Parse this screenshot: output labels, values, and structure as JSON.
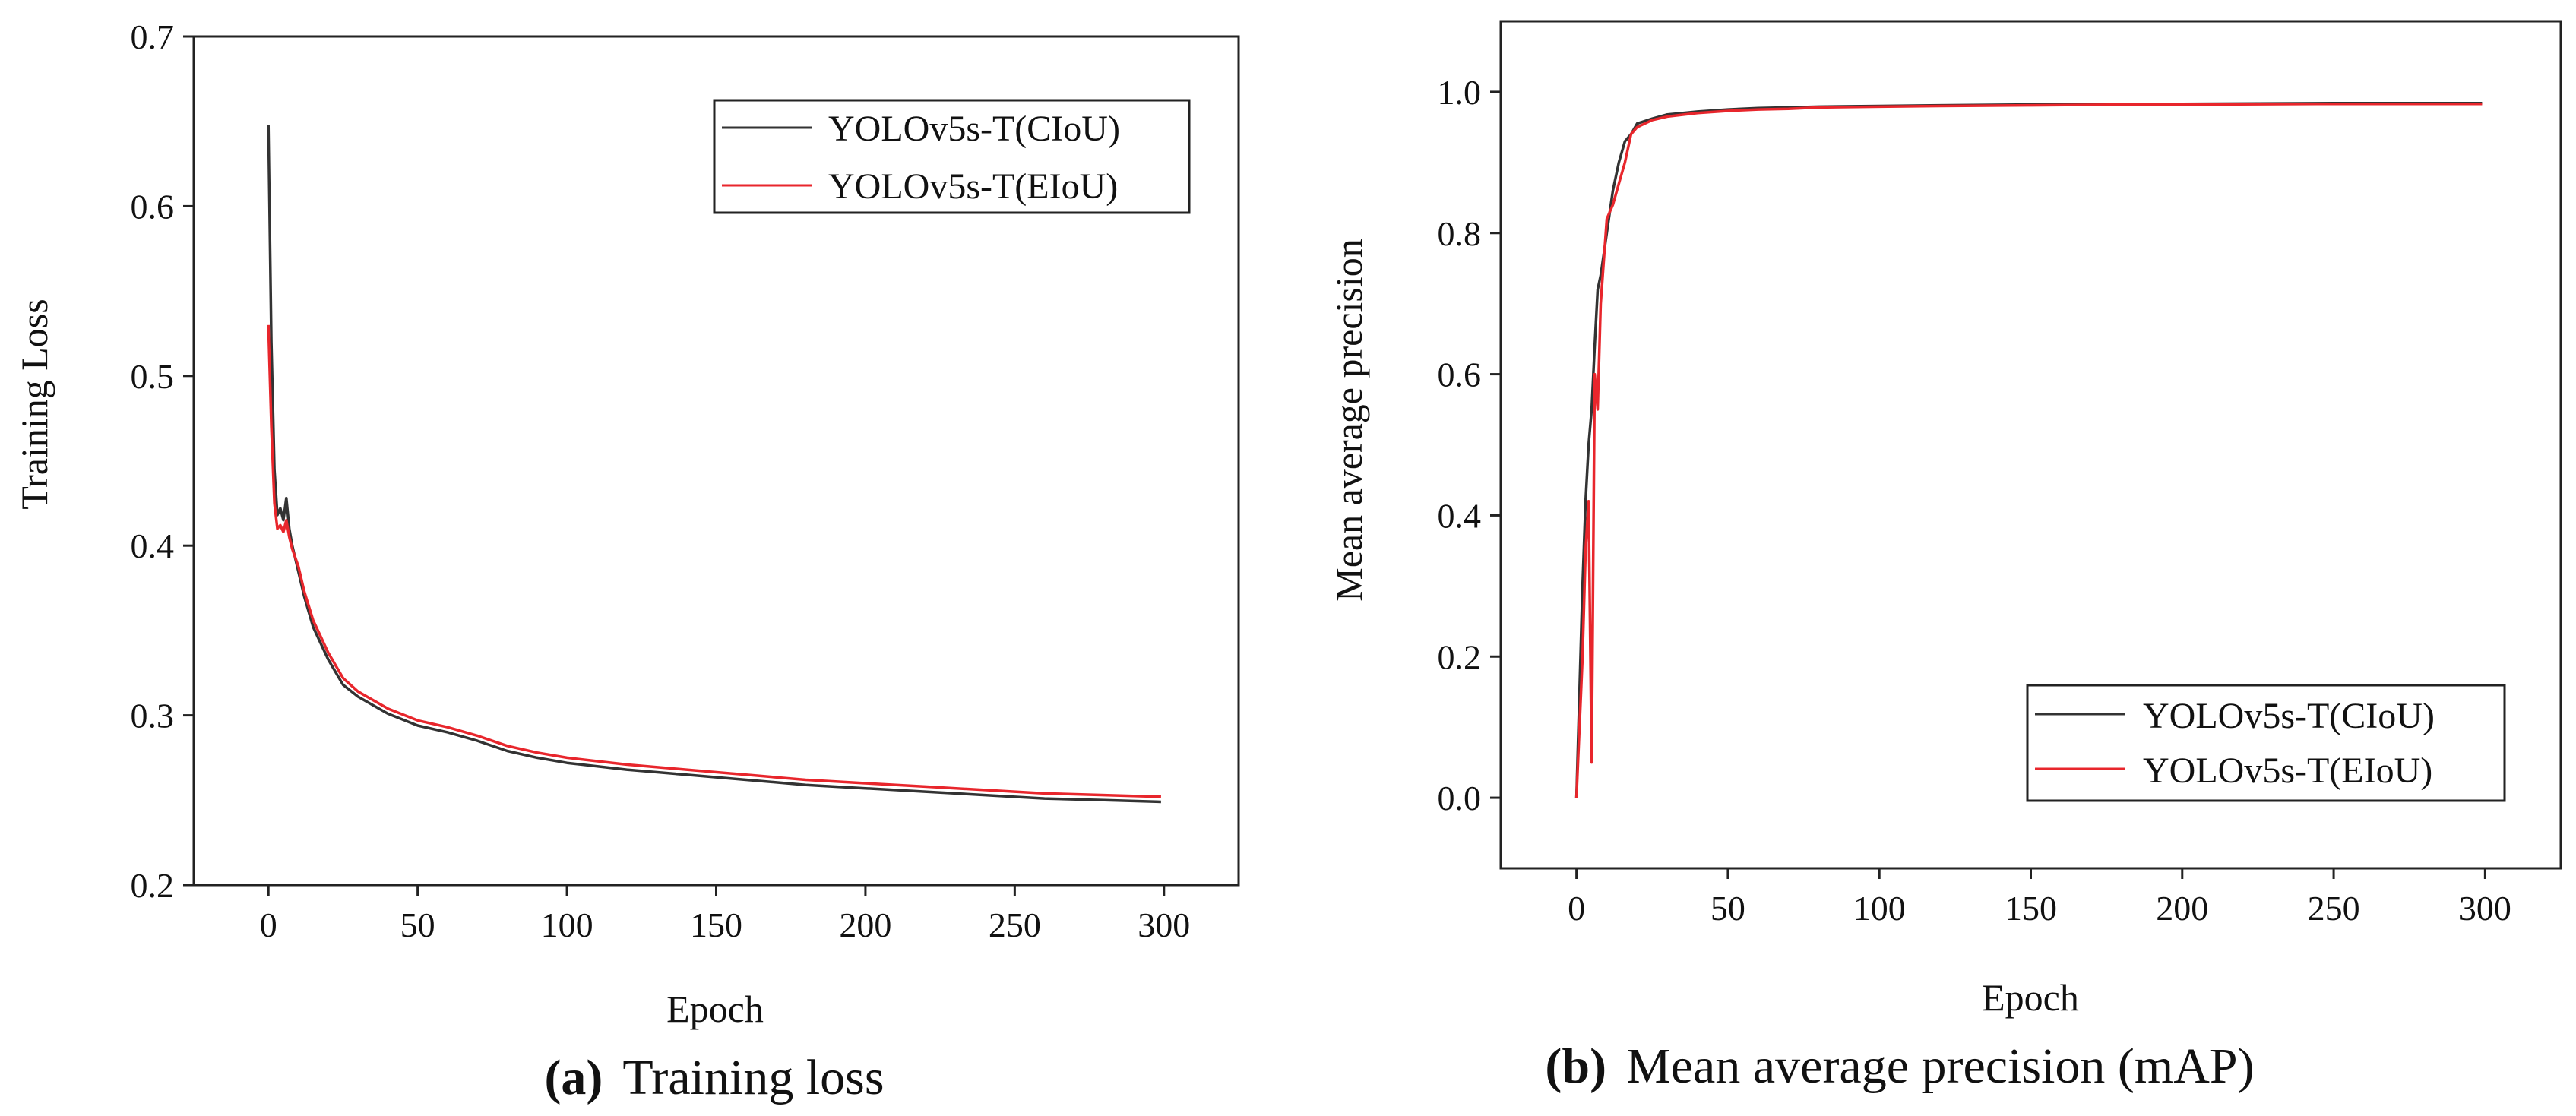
{
  "chart_data": [
    {
      "id": "a",
      "type": "line",
      "caption_tag": "(a)",
      "caption": "Training loss",
      "title": "",
      "xlabel": "Epoch",
      "ylabel": "Training Loss",
      "xlim": [
        -25,
        325
      ],
      "ylim": [
        0.2,
        0.7
      ],
      "xticks": [
        0,
        50,
        100,
        150,
        200,
        250,
        300
      ],
      "yticks": [
        0.2,
        0.3,
        0.4,
        0.5,
        0.6,
        0.7
      ],
      "grid": false,
      "legend_position": "top-right",
      "series": [
        {
          "name": "YOLOv5s-T(CIoU)",
          "color": "#333333",
          "x": [
            0,
            1,
            2,
            3,
            4,
            5,
            6,
            7,
            8,
            10,
            12,
            15,
            20,
            25,
            30,
            40,
            50,
            60,
            70,
            80,
            90,
            100,
            120,
            140,
            160,
            180,
            200,
            220,
            240,
            260,
            280,
            299
          ],
          "y": [
            0.648,
            0.52,
            0.445,
            0.418,
            0.422,
            0.415,
            0.428,
            0.41,
            0.4,
            0.385,
            0.37,
            0.352,
            0.333,
            0.318,
            0.311,
            0.301,
            0.294,
            0.29,
            0.285,
            0.279,
            0.275,
            0.272,
            0.268,
            0.265,
            0.262,
            0.259,
            0.257,
            0.255,
            0.253,
            0.251,
            0.25,
            0.249
          ]
        },
        {
          "name": "YOLOv5s-T(EIoU)",
          "color": "#e8262c",
          "x": [
            0,
            1,
            2,
            3,
            4,
            5,
            6,
            7,
            8,
            10,
            12,
            15,
            20,
            25,
            30,
            40,
            50,
            60,
            70,
            80,
            90,
            100,
            120,
            140,
            160,
            180,
            200,
            220,
            240,
            260,
            280,
            299
          ],
          "y": [
            0.53,
            0.47,
            0.425,
            0.41,
            0.412,
            0.408,
            0.415,
            0.405,
            0.398,
            0.388,
            0.373,
            0.356,
            0.337,
            0.322,
            0.314,
            0.304,
            0.297,
            0.293,
            0.288,
            0.282,
            0.278,
            0.275,
            0.271,
            0.268,
            0.265,
            0.262,
            0.26,
            0.258,
            0.256,
            0.254,
            0.253,
            0.252
          ]
        }
      ]
    },
    {
      "id": "b",
      "type": "line",
      "caption_tag": "(b)",
      "caption": "Mean average precision (mAP)",
      "title": "",
      "xlabel": "Epoch",
      "ylabel": "Mean average precision",
      "xlim": [
        -25,
        325
      ],
      "ylim": [
        -0.1,
        1.1
      ],
      "xticks": [
        0,
        50,
        100,
        150,
        200,
        250,
        300
      ],
      "yticks": [
        0.0,
        0.2,
        0.4,
        0.6,
        0.8,
        1.0
      ],
      "grid": false,
      "legend_position": "bottom-right",
      "series": [
        {
          "name": "YOLOv5s-T(CIoU)",
          "color": "#333333",
          "x": [
            0,
            2,
            3,
            4,
            5,
            6,
            7,
            8,
            10,
            12,
            14,
            16,
            18,
            20,
            25,
            30,
            40,
            50,
            60,
            70,
            80,
            100,
            120,
            150,
            180,
            200,
            250,
            299
          ],
          "y": [
            0.0,
            0.3,
            0.42,
            0.5,
            0.55,
            0.64,
            0.72,
            0.74,
            0.8,
            0.86,
            0.9,
            0.93,
            0.94,
            0.955,
            0.962,
            0.968,
            0.972,
            0.975,
            0.977,
            0.978,
            0.979,
            0.98,
            0.981,
            0.982,
            0.983,
            0.983,
            0.984,
            0.984
          ]
        },
        {
          "name": "YOLOv5s-T(EIoU)",
          "color": "#e8262c",
          "x": [
            0,
            2,
            3,
            4,
            5,
            6,
            7,
            8,
            10,
            12,
            14,
            16,
            18,
            20,
            25,
            30,
            40,
            50,
            60,
            70,
            80,
            100,
            120,
            150,
            180,
            200,
            250,
            299
          ],
          "y": [
            0.0,
            0.2,
            0.35,
            0.42,
            0.05,
            0.6,
            0.55,
            0.7,
            0.82,
            0.84,
            0.87,
            0.9,
            0.94,
            0.95,
            0.96,
            0.965,
            0.97,
            0.973,
            0.975,
            0.976,
            0.978,
            0.979,
            0.98,
            0.981,
            0.982,
            0.982,
            0.983,
            0.983
          ]
        }
      ]
    }
  ]
}
